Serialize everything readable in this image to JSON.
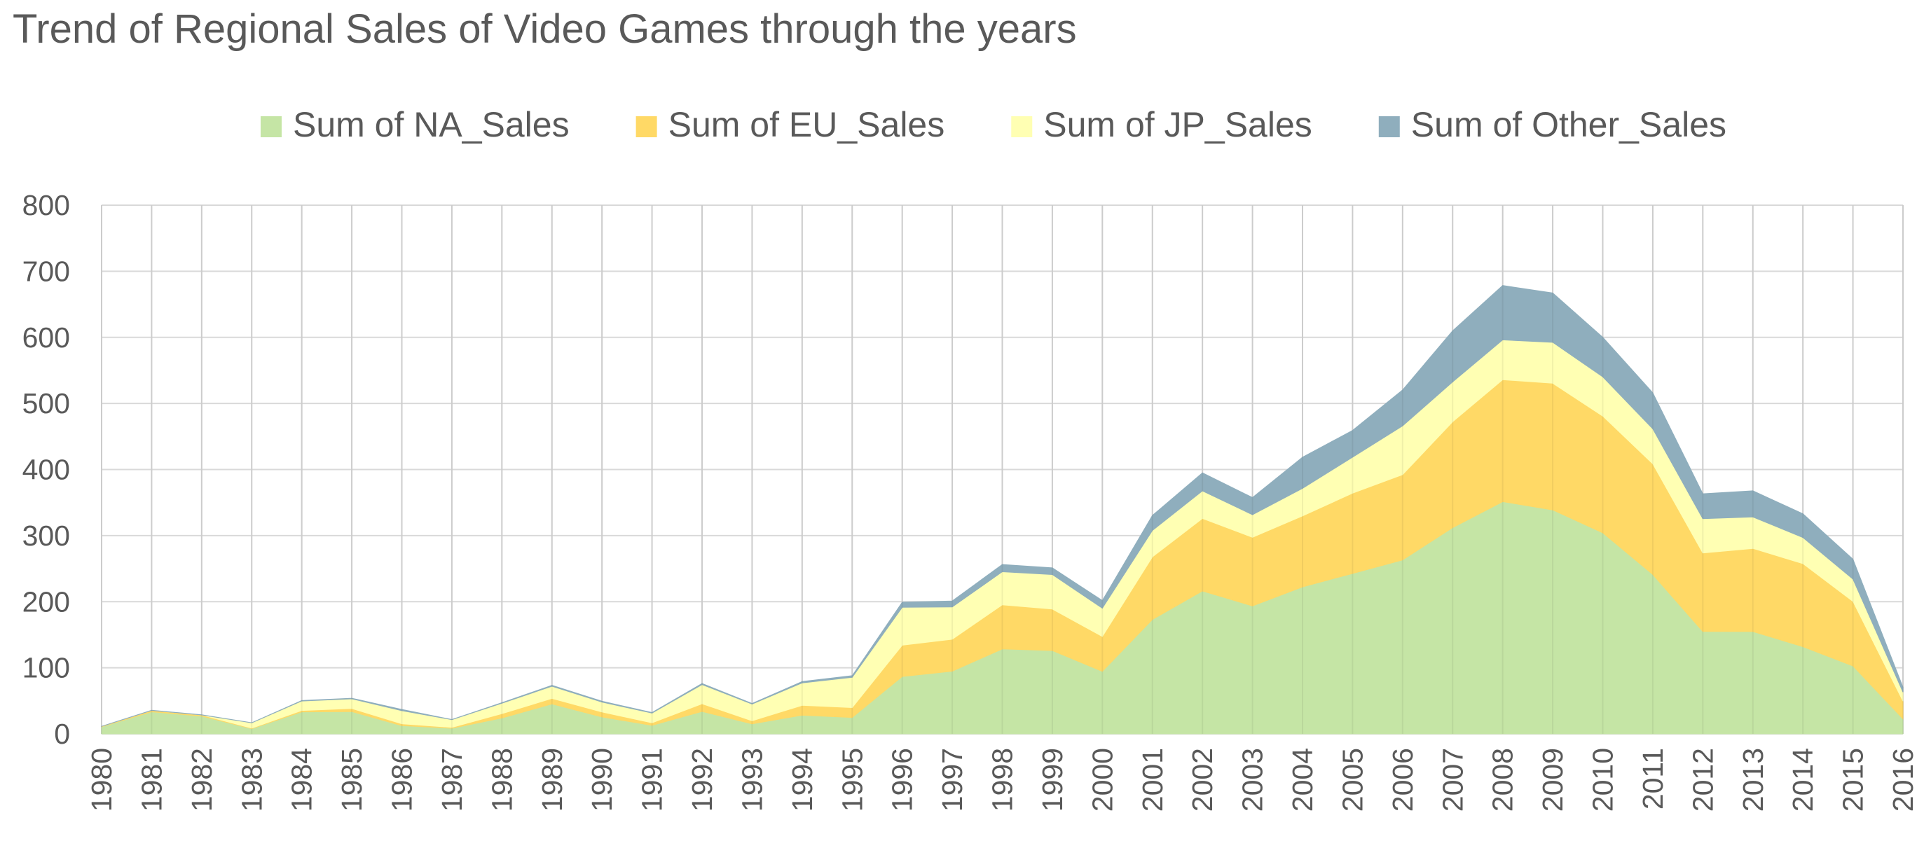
{
  "chart_data": {
    "type": "area",
    "stacked": true,
    "title": "Trend of Regional Sales of Video Games through the years",
    "xlabel": "",
    "ylabel": "",
    "ylim": [
      0,
      800
    ],
    "yticks": [
      0,
      100,
      200,
      300,
      400,
      500,
      600,
      700,
      800
    ],
    "grid": true,
    "legend_position": "top",
    "categories": [
      "1980",
      "1981",
      "1982",
      "1983",
      "1984",
      "1985",
      "1986",
      "1987",
      "1988",
      "1989",
      "1990",
      "1991",
      "1992",
      "1993",
      "1994",
      "1995",
      "1996",
      "1997",
      "1998",
      "1999",
      "2000",
      "2001",
      "2002",
      "2003",
      "2004",
      "2005",
      "2006",
      "2007",
      "2008",
      "2009",
      "2010",
      "2011",
      "2012",
      "2013",
      "2014",
      "2015",
      "2016"
    ],
    "series": [
      {
        "name": "Sum of NA_Sales",
        "color": "#c5e5a5",
        "values": [
          10.6,
          33.4,
          26.9,
          7.8,
          33.3,
          33.7,
          12.5,
          8.5,
          23.9,
          45.2,
          25.5,
          12.8,
          33.9,
          15.1,
          28.2,
          24.8,
          86.8,
          94.8,
          128.4,
          126.1,
          94.5,
          173.0,
          216.2,
          193.6,
          222.4,
          242.6,
          263.1,
          312.1,
          351.4,
          338.9,
          304.2,
          241.2,
          154.9,
          154.8,
          131.9,
          102.8,
          22.7
        ]
      },
      {
        "name": "Sum of EU_Sales",
        "color": "#ffd966",
        "values": [
          0.7,
          2.0,
          1.7,
          0.8,
          2.1,
          4.7,
          2.8,
          1.4,
          6.6,
          8.4,
          7.6,
          3.9,
          11.7,
          4.7,
          14.9,
          14.9,
          47.3,
          48.3,
          66.9,
          62.7,
          52.8,
          94.9,
          109.7,
          103.8,
          107.3,
          121.6,
          129.2,
          160.2,
          184.4,
          191.6,
          176.6,
          167.4,
          118.8,
          125.8,
          125.7,
          97.7,
          26.8
        ]
      },
      {
        "name": "Sum of JP_Sales",
        "color": "#ffffb3",
        "values": [
          0.0,
          0.0,
          0.0,
          8.1,
          14.3,
          14.6,
          19.8,
          11.6,
          15.8,
          18.4,
          14.9,
          14.8,
          28.9,
          25.3,
          33.9,
          45.8,
          57.4,
          48.9,
          50.0,
          52.3,
          42.8,
          39.9,
          41.8,
          34.2,
          41.7,
          54.3,
          73.7,
          60.3,
          60.3,
          61.9,
          59.5,
          53.0,
          51.8,
          47.6,
          39.5,
          33.7,
          13.7
        ]
      },
      {
        "name": "Sum of Other_Sales",
        "color": "#8faebd",
        "values": [
          0.1,
          0.3,
          0.3,
          0.1,
          0.7,
          0.9,
          1.9,
          0.2,
          0.9,
          1.4,
          1.4,
          0.8,
          1.7,
          0.9,
          2.2,
          2.6,
          7.7,
          9.1,
          11.0,
          10.1,
          11.6,
          22.8,
          27.3,
          26.0,
          47.3,
          40.6,
          54.4,
          77.4,
          82.4,
          74.8,
          59.9,
          54.5,
          37.8,
          39.6,
          35.9,
          30.1,
          7.4
        ]
      }
    ]
  }
}
